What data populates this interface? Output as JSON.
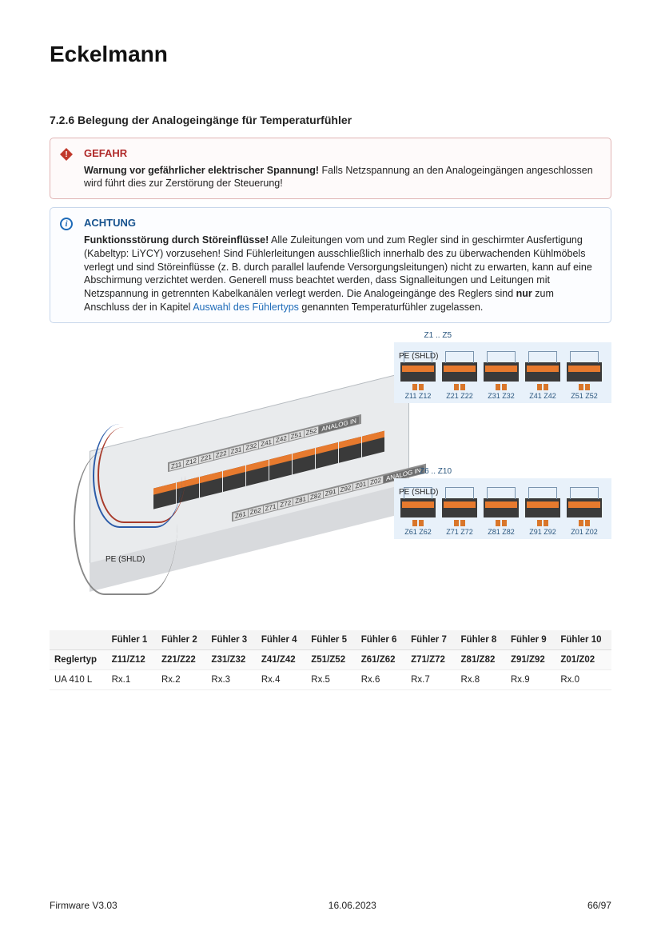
{
  "brand": "Eckelmann",
  "section": {
    "number": "7.2.6",
    "title": "Belegung der Analogeingänge für Temperaturfühler"
  },
  "danger": {
    "title": "GEFAHR",
    "bold": "Warnung vor gefährlicher elektrischer Spannung!",
    "text": " Falls Netzspannung an den Analogeingängen angeschlossen wird führt dies zur Zerstörung der Steuerung!"
  },
  "attention": {
    "title": "ACHTUNG",
    "bold": "Funktionsstörung durch Störeinflüsse!",
    "text1": " Alle Zuleitungen vom und zum Regler sind in geschirmter Ausfertigung (Kabeltyp: LiYCY) vorzusehen! Sind Fühlerleitungen ausschließlich innerhalb des zu überwachenden Kühlmöbels verlegt und sind Störeinflüsse (z. B. durch parallel laufende Versorgungsleitungen) nicht zu erwarten, kann auf eine Abschirmung verzichtet werden. Generell muss beachtet werden, dass Signalleitungen und Leitungen mit Netzspannung in getrennten Kabelkanälen verlegt werden. Die Analogeingänge des Reglers sind ",
    "only": "nur",
    "text2": " zum Anschluss der in Kapitel ",
    "link": "Auswahl des Fühlertyps",
    "text3": " genannten Temperaturfühler zugelassen."
  },
  "diagram": {
    "strip1": [
      "Z11",
      "Z12",
      "Z21",
      "Z22",
      "Z31",
      "Z32",
      "Z41",
      "Z42",
      "Z51",
      "Z52"
    ],
    "strip2": [
      "Z61",
      "Z62",
      "Z71",
      "Z72",
      "Z81",
      "Z82",
      "Z91",
      "Z92",
      "Z01",
      "Z02"
    ],
    "analog": "ANALOG IN",
    "pe": "PE (SHLD)",
    "z1": "Z1 .. Z5",
    "z6": "Z6 .. Z10",
    "detail1_labels": [
      [
        "Z11",
        "Z12"
      ],
      [
        "Z21",
        "Z22"
      ],
      [
        "Z31",
        "Z32"
      ],
      [
        "Z41",
        "Z42"
      ],
      [
        "Z51",
        "Z52"
      ]
    ],
    "detail2_labels": [
      [
        "Z61",
        "Z62"
      ],
      [
        "Z71",
        "Z72"
      ],
      [
        "Z81",
        "Z82"
      ],
      [
        "Z91",
        "Z92"
      ],
      [
        "Z01",
        "Z02"
      ]
    ]
  },
  "table": {
    "headers": [
      "",
      "Fühler 1",
      "Fühler 2",
      "Fühler 3",
      "Fühler 4",
      "Fühler 5",
      "Fühler 6",
      "Fühler 7",
      "Fühler 8",
      "Fühler 9",
      "Fühler 10"
    ],
    "row_type_label": "Reglertyp",
    "row_type": [
      "Z11/Z12",
      "Z21/Z22",
      "Z31/Z32",
      "Z41/Z42",
      "Z51/Z52",
      "Z61/Z62",
      "Z71/Z72",
      "Z81/Z82",
      "Z91/Z92",
      "Z01/Z02"
    ],
    "row_model_label": "UA 410 L",
    "row_model": [
      "Rx.1",
      "Rx.2",
      "Rx.3",
      "Rx.4",
      "Rx.5",
      "Rx.6",
      "Rx.7",
      "Rx.8",
      "Rx.9",
      "Rx.0"
    ]
  },
  "footer": {
    "left": "Firmware V3.03",
    "center": "16.06.2023",
    "right": "66/97"
  },
  "colors": {
    "danger_bg": "#fefafa",
    "info_bg": "#fcfdff",
    "orange": "#e77a2e",
    "panel": "#e8f1fa",
    "link": "#1e6bb8"
  }
}
